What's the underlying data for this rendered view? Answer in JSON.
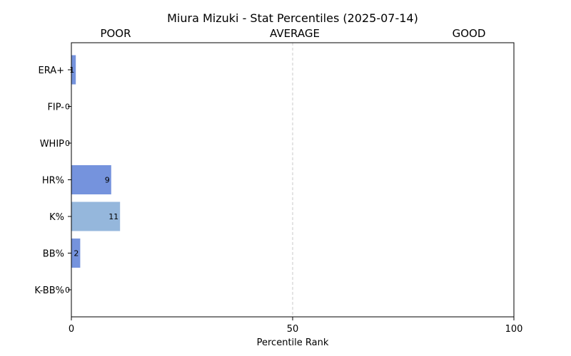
{
  "chart_data": {
    "type": "bar",
    "orientation": "horizontal",
    "title": "Miura Mizuki - Stat Percentiles (2025-07-14)",
    "xlabel": "Percentile Rank",
    "ylabel": "",
    "xlim": [
      0,
      100
    ],
    "xticks": [
      0,
      50,
      100
    ],
    "band_labels": [
      "POOR",
      "AVERAGE",
      "GOOD"
    ],
    "reference_line": 50,
    "grid": false,
    "categories": [
      "ERA+",
      "FIP-",
      "WHIP",
      "HR%",
      "K%",
      "BB%",
      "K-BB%"
    ],
    "values": [
      1,
      0,
      0,
      9,
      11,
      2,
      0
    ],
    "value_labels": [
      "1",
      "0",
      "0",
      "9",
      "11",
      "2",
      "0"
    ],
    "bar_colors": [
      "#7593dd",
      "#7593dd",
      "#7593dd",
      "#7593dd",
      "#95b7dc",
      "#7593dd",
      "#7593dd"
    ]
  }
}
